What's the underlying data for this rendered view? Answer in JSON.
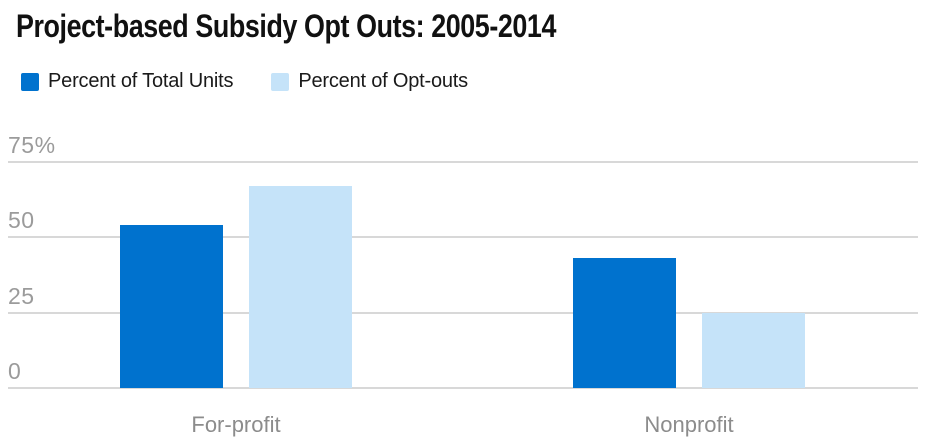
{
  "title": "Project-based Subsidy Opt Outs: 2005-2014",
  "legend": {
    "items": [
      {
        "label": "Percent of Total Units",
        "color": "#0072ce"
      },
      {
        "label": "Percent of Opt-outs",
        "color": "#c5e3f9"
      }
    ]
  },
  "chart_data": {
    "type": "bar",
    "title": "Project-based Subsidy Opt Outs: 2005-2014",
    "categories": [
      "For-profit",
      "Nonprofit"
    ],
    "series": [
      {
        "name": "Percent of Total Units",
        "color": "#0072ce",
        "values": [
          54,
          43
        ]
      },
      {
        "name": "Percent of Opt-outs",
        "color": "#c5e3f9",
        "values": [
          67,
          25
        ]
      }
    ],
    "xlabel": "",
    "ylabel": "",
    "ylim": [
      0,
      75
    ],
    "yticks": [
      {
        "value": 0,
        "label": "0"
      },
      {
        "value": 25,
        "label": "25"
      },
      {
        "value": 50,
        "label": "50"
      },
      {
        "value": 75,
        "label": "75%"
      }
    ],
    "grid": true,
    "legend_position": "top-left"
  },
  "colors": {
    "background": "#ffffff",
    "grid": "#d8d8d8",
    "tick_label": "#9b9b9b",
    "category_label": "#8c8c8c",
    "title": "#111111",
    "legend_text": "#1a1a1a"
  }
}
